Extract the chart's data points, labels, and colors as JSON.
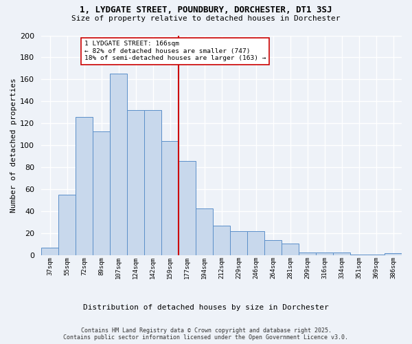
{
  "title_line1": "1, LYDGATE STREET, POUNDBURY, DORCHESTER, DT1 3SJ",
  "title_line2": "Size of property relative to detached houses in Dorchester",
  "xlabel": "Distribution of detached houses by size in Dorchester",
  "ylabel": "Number of detached properties",
  "bin_labels": [
    "37sqm",
    "55sqm",
    "72sqm",
    "89sqm",
    "107sqm",
    "124sqm",
    "142sqm",
    "159sqm",
    "177sqm",
    "194sqm",
    "212sqm",
    "229sqm",
    "246sqm",
    "264sqm",
    "281sqm",
    "299sqm",
    "316sqm",
    "334sqm",
    "351sqm",
    "369sqm",
    "386sqm"
  ],
  "bar_heights": [
    7,
    55,
    126,
    113,
    165,
    132,
    132,
    104,
    86,
    43,
    27,
    22,
    22,
    14,
    11,
    3,
    3,
    3,
    1,
    1,
    2
  ],
  "bar_color": "#c8d8ec",
  "bar_edge_color": "#5b8fc9",
  "vline_bin_idx": 8,
  "vline_label": "166sqm",
  "vline_color": "#cc0000",
  "annotation_title": "1 LYDGATE STREET: 166sqm",
  "annotation_line2": "← 82% of detached houses are smaller (747)",
  "annotation_line3": "18% of semi-detached houses are larger (163) →",
  "annotation_box_color": "#ffffff",
  "annotation_box_edge": "#cc0000",
  "ylim": [
    0,
    200
  ],
  "yticks": [
    0,
    20,
    40,
    60,
    80,
    100,
    120,
    140,
    160,
    180,
    200
  ],
  "footer_line1": "Contains HM Land Registry data © Crown copyright and database right 2025.",
  "footer_line2": "Contains public sector information licensed under the Open Government Licence v3.0.",
  "bg_color": "#eef2f8",
  "grid_color": "#ffffff"
}
